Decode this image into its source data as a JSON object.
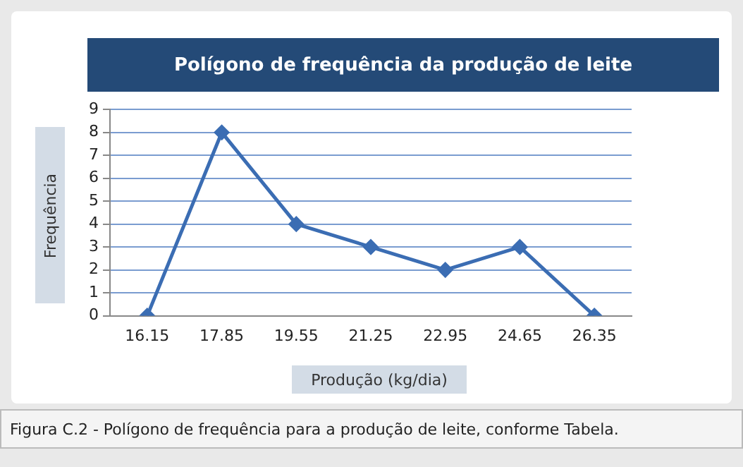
{
  "chart_data": {
    "type": "line",
    "title": "Polígono de frequência da produção de leite",
    "xlabel": "Produção (kg/dia)",
    "ylabel": "Frequência",
    "annotations": [
      "Figura C.2 - Polígono de frequência para a produção de leite, conforme Tabela."
    ],
    "categories": [
      "16.15",
      "17.85",
      "19.55",
      "21.25",
      "22.95",
      "24.65",
      "26.35"
    ],
    "series": [
      {
        "color": "#3b6db3",
        "values": [
          0,
          8,
          4,
          3,
          2,
          3,
          0
        ]
      }
    ],
    "ylim": [
      0,
      9
    ],
    "yticks": [
      0,
      1,
      2,
      3,
      4,
      5,
      6,
      7,
      8,
      9
    ],
    "grid": "y",
    "legend": false,
    "marker": "diamond",
    "line_style": "solid"
  }
}
